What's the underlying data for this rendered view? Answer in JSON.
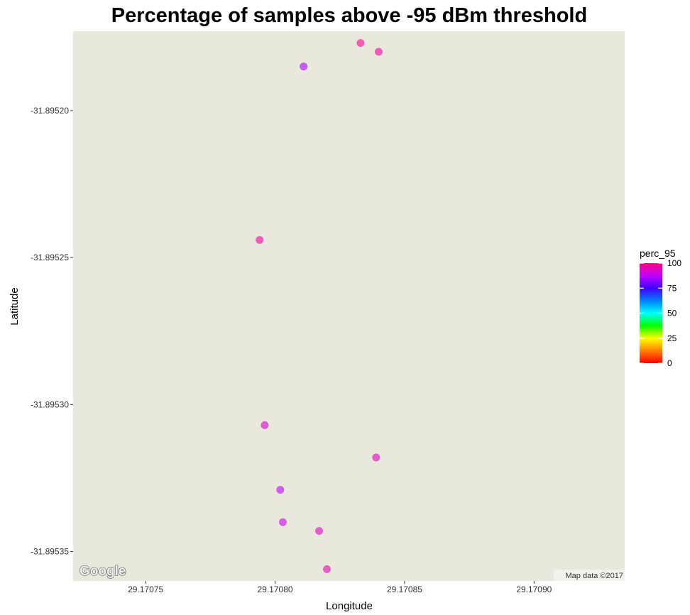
{
  "chart_data": {
    "type": "scatter",
    "title": "Percentage of samples above -95 dBm threshold",
    "xlabel": "Longitude",
    "ylabel": "Latitude",
    "xlim": [
      29.170722,
      29.170935
    ],
    "ylim": [
      -31.89536,
      -31.895173
    ],
    "x_ticks": [
      29.17075,
      29.1708,
      29.17085,
      29.1709
    ],
    "x_tick_labels": [
      "29.17075",
      "29.17080",
      "29.17085",
      "29.17090"
    ],
    "y_ticks": [
      -31.8952,
      -31.89525,
      -31.8953,
      -31.89535
    ],
    "y_tick_labels": [
      "-31.89520",
      "-31.89525",
      "-31.89530",
      "-31.89535"
    ],
    "legend": {
      "title": "perc_95",
      "position": "right",
      "range": [
        0,
        100
      ],
      "ticks": [
        0,
        25,
        50,
        75,
        100
      ],
      "tick_labels": [
        "0",
        "25",
        "50",
        "75",
        "100"
      ]
    },
    "panel_background": "#e8e8dc",
    "grid": false,
    "points": [
      {
        "x": 29.170833,
        "y": -31.895177,
        "perc_95": 98
      },
      {
        "x": 29.17084,
        "y": -31.89518,
        "perc_95": 96
      },
      {
        "x": 29.170811,
        "y": -31.895185,
        "perc_95": 85
      },
      {
        "x": 29.170794,
        "y": -31.895244,
        "perc_95": 97
      },
      {
        "x": 29.170796,
        "y": -31.895307,
        "perc_95": 92
      },
      {
        "x": 29.170839,
        "y": -31.895318,
        "perc_95": 94
      },
      {
        "x": 29.170802,
        "y": -31.895329,
        "perc_95": 88
      },
      {
        "x": 29.170803,
        "y": -31.89534,
        "perc_95": 90
      },
      {
        "x": 29.170817,
        "y": -31.895343,
        "perc_95": 93
      },
      {
        "x": 29.17082,
        "y": -31.895356,
        "perc_95": 95
      }
    ]
  },
  "map": {
    "logo_text": "Google",
    "attribution": "Map data ©2017"
  }
}
